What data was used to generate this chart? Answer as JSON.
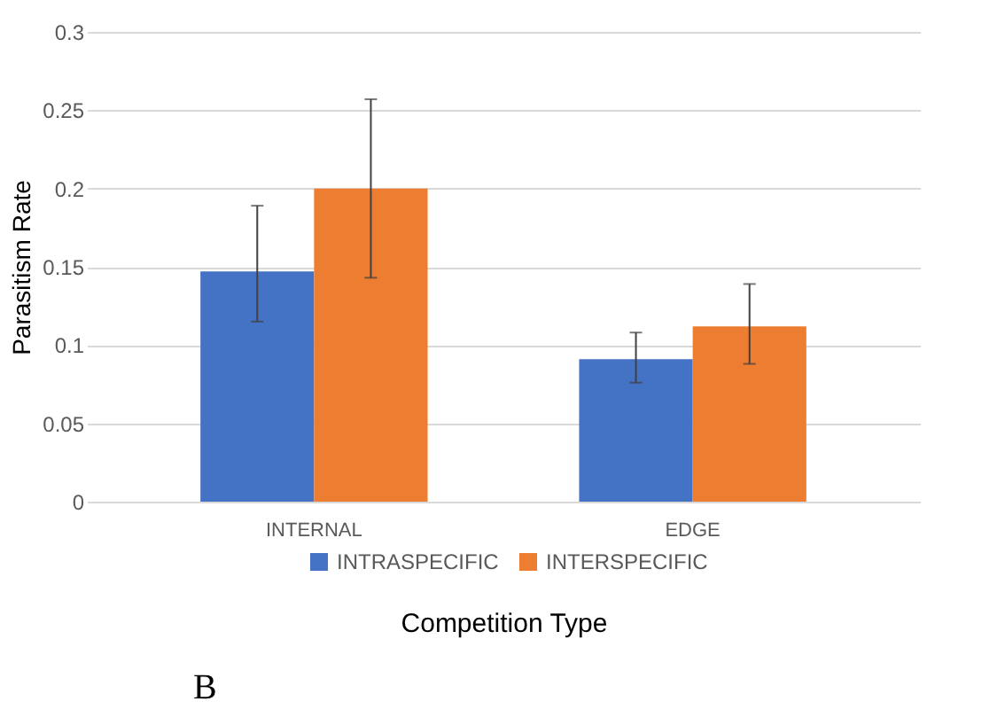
{
  "chart_data": {
    "type": "bar",
    "xlabel": "Competition Type",
    "ylabel": "Parasitism Rate",
    "categories": [
      "INTERNAL",
      "EDGE"
    ],
    "series": [
      {
        "name": "INTRASPECIFIC",
        "color": "#4472c4",
        "values": [
          0.147,
          0.091
        ],
        "errors": [
          [
            0.115,
            0.189
          ],
          [
            0.076,
            0.108
          ]
        ]
      },
      {
        "name": "INTERSPECIFIC",
        "color": "#ed7d31",
        "values": [
          0.2,
          0.112
        ],
        "errors": [
          [
            0.143,
            0.257
          ],
          [
            0.088,
            0.139
          ]
        ]
      }
    ],
    "ylim": [
      0,
      0.3
    ],
    "yticks": [
      0,
      0.05,
      0.1,
      0.15,
      0.2,
      0.25,
      0.3
    ],
    "grid": "y",
    "legend": "bottom",
    "annotations": [
      "B"
    ]
  }
}
